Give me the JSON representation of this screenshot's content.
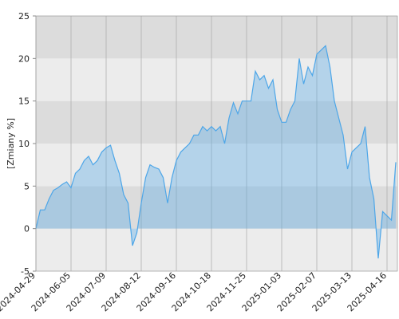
{
  "chart_data": {
    "type": "area",
    "y_label": "[Zmiany %]",
    "categories": [
      "2024-04-29",
      null,
      null,
      null,
      null,
      null,
      null,
      null,
      "2024-06-05",
      null,
      null,
      null,
      null,
      null,
      null,
      null,
      "2024-07-09",
      null,
      null,
      null,
      null,
      null,
      null,
      null,
      "2024-08-12",
      null,
      null,
      null,
      null,
      null,
      null,
      null,
      "2024-09-16",
      null,
      null,
      null,
      null,
      null,
      null,
      null,
      "2024-10-18",
      null,
      null,
      null,
      null,
      null,
      null,
      null,
      "2024-11-25",
      null,
      null,
      null,
      null,
      null,
      null,
      null,
      "2025-01-03",
      null,
      null,
      null,
      null,
      null,
      null,
      null,
      "2025-02-07",
      null,
      null,
      null,
      null,
      null,
      null,
      null,
      "2025-03-13",
      null,
      null,
      null,
      null,
      null,
      null,
      null,
      "2025-04-16",
      null,
      null
    ],
    "values": [
      0,
      2.2,
      2.2,
      3.5,
      4.5,
      4.8,
      5.2,
      5.5,
      4.8,
      6.5,
      7,
      8,
      8.5,
      7.5,
      8,
      9,
      9.5,
      9.8,
      8,
      6.5,
      4,
      3,
      -2,
      -0.5,
      3,
      6,
      7.5,
      7.2,
      7,
      6,
      3,
      6,
      8,
      9,
      9.5,
      10,
      11,
      11,
      12,
      11.5,
      12,
      11.5,
      12,
      10,
      13,
      14.8,
      13.5,
      15,
      15,
      15,
      18.5,
      17.5,
      18,
      16.5,
      17.5,
      14,
      12.5,
      12.5,
      14,
      15,
      20,
      17,
      19,
      18,
      20.5,
      21,
      21.5,
      19,
      15,
      13,
      11,
      7,
      9,
      9.5,
      10,
      12,
      6,
      3.5,
      -3.5,
      2,
      1.5,
      1,
      7.8
    ],
    "color": "#4da6e8",
    "ylim": [
      -5,
      25
    ],
    "yticks": [
      -5,
      0,
      5,
      10,
      15,
      20,
      25
    ],
    "grid": true
  }
}
